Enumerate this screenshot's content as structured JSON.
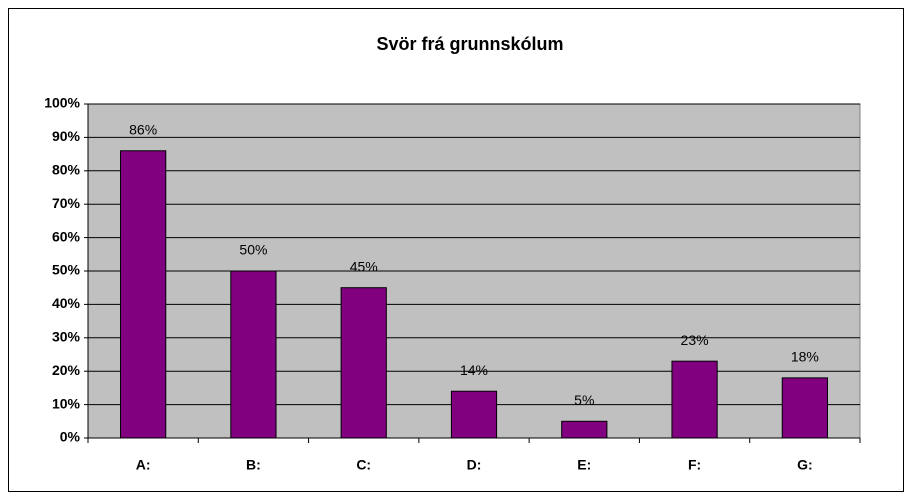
{
  "chart_data": {
    "type": "bar",
    "title": "Svör frá grunnskólum",
    "categories": [
      "A:",
      "B:",
      "C:",
      "D:",
      "E:",
      "F:",
      "G:"
    ],
    "values": [
      86,
      50,
      45,
      14,
      5,
      23,
      18
    ],
    "value_labels": [
      "86%",
      "50%",
      "45%",
      "14%",
      "5%",
      "23%",
      "18%"
    ],
    "color": "#800080",
    "ylim": [
      0,
      100
    ],
    "yticks": [
      {
        "value": 0,
        "label": "0%"
      },
      {
        "value": 10,
        "label": "10%"
      },
      {
        "value": 20,
        "label": "20%"
      },
      {
        "value": 30,
        "label": "30%"
      },
      {
        "value": 40,
        "label": "40%"
      },
      {
        "value": 50,
        "label": "50%"
      },
      {
        "value": 60,
        "label": "60%"
      },
      {
        "value": 70,
        "label": "70%"
      },
      {
        "value": 80,
        "label": "80%"
      },
      {
        "value": 90,
        "label": "90%"
      },
      {
        "value": 100,
        "label": "100%"
      }
    ],
    "grid": true
  }
}
